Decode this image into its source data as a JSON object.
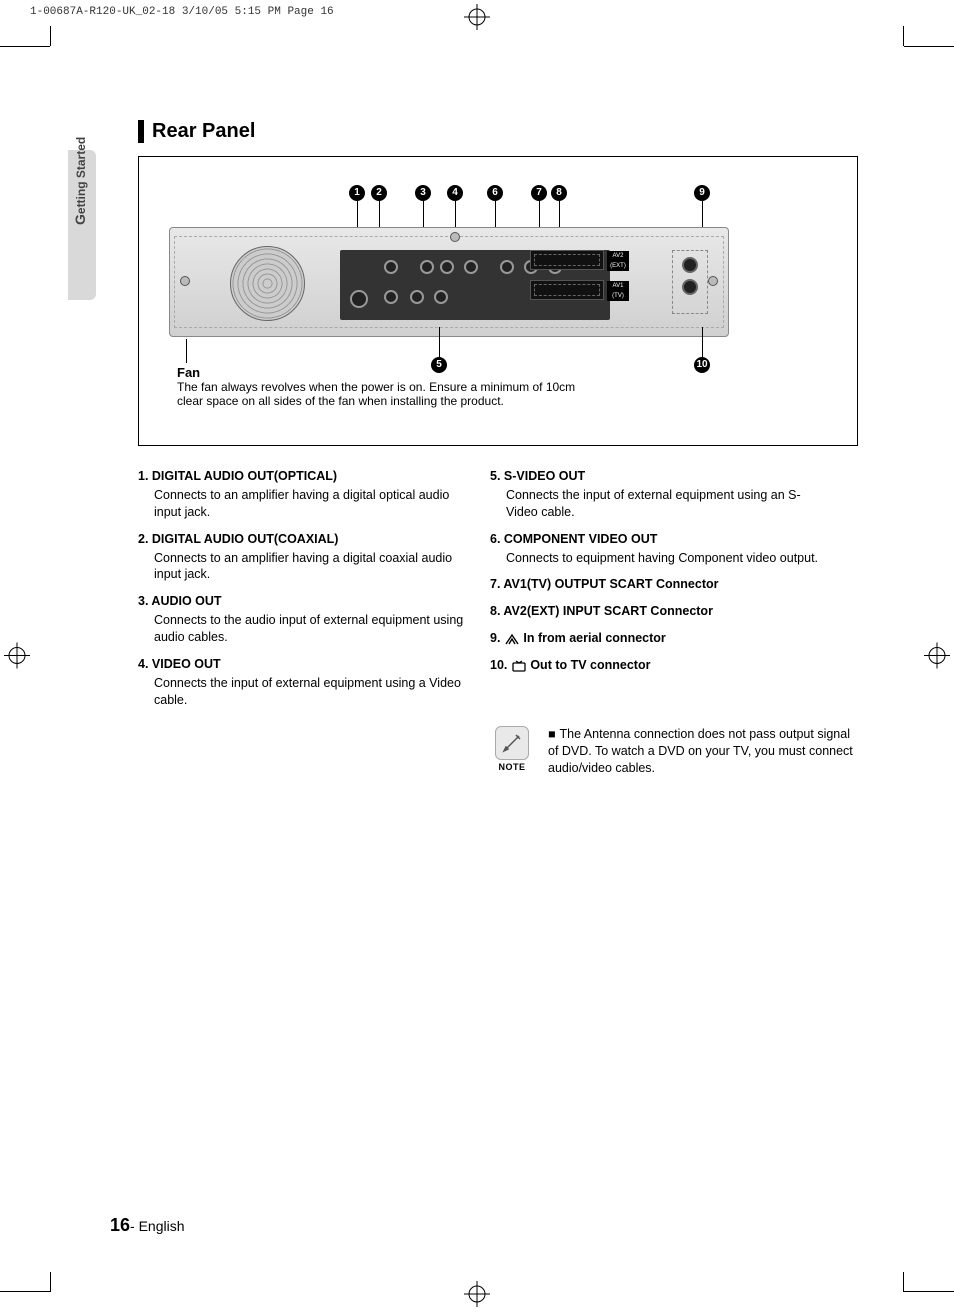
{
  "header": "1-00687A-R120-UK_02-18  3/10/05  5:15 PM  Page 16",
  "tab": {
    "g": "G",
    "rest": "etting Started"
  },
  "section_title": "Rear Panel",
  "callouts": {
    "c1": "1",
    "c2": "2",
    "c3": "3",
    "c4": "4",
    "c5": "5",
    "c6": "6",
    "c7": "7",
    "c8": "8",
    "c9": "9",
    "c10": "10"
  },
  "fan": {
    "title": "Fan",
    "body": "The fan always revolves when the power is on. Ensure a minimum of 10cm clear space on all sides of the fan when installing the product."
  },
  "left_items": [
    {
      "num": "1.",
      "title": "DIGITAL AUDIO OUT(OPTICAL)",
      "desc": "Connects to an amplifier having a digital optical audio input jack."
    },
    {
      "num": "2.",
      "title": "DIGITAL AUDIO OUT(COAXIAL)",
      "desc": "Connects to an amplifier having a digital coaxial audio input jack."
    },
    {
      "num": "3.",
      "title": "AUDIO OUT",
      "desc": "Connects to the audio input of external equipment using  audio cables."
    },
    {
      "num": "4.",
      "title": "VIDEO OUT",
      "desc": "Connects the input of external equipment using a Video cable."
    }
  ],
  "right_items": [
    {
      "num": "5.",
      "title": "S-VIDEO OUT",
      "desc": "Connects the input of external equipment using an S-Video cable."
    },
    {
      "num": "6.",
      "title": "COMPONENT VIDEO OUT",
      "desc": "Connects to equipment having Component video output."
    },
    {
      "num": "7.",
      "title": "AV1(TV) OUTPUT SCART Connector",
      "desc": ""
    },
    {
      "num": "8.",
      "title": "AV2(EXT) INPUT SCART Connector",
      "desc": ""
    },
    {
      "num": "9.",
      "title": "In from aerial connector",
      "desc": "",
      "icon": "aerial"
    },
    {
      "num": "10.",
      "title": "Out to TV connector",
      "desc": "",
      "icon": "tv"
    }
  ],
  "note": {
    "label": "NOTE",
    "text": "The Antenna connection does not pass output signal of DVD. To watch a DVD on your TV, you must connect audio/video cables."
  },
  "footer": {
    "page": "16",
    "lang": "- English"
  },
  "scart": {
    "top": "AV2\n(EXT)",
    "bottom": "AV1\n(TV)"
  }
}
